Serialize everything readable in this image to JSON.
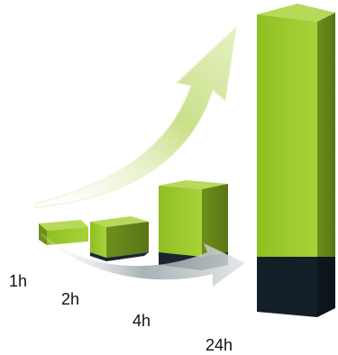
{
  "labels": [
    "1h",
    "2h",
    "4h",
    "24h"
  ]
}
